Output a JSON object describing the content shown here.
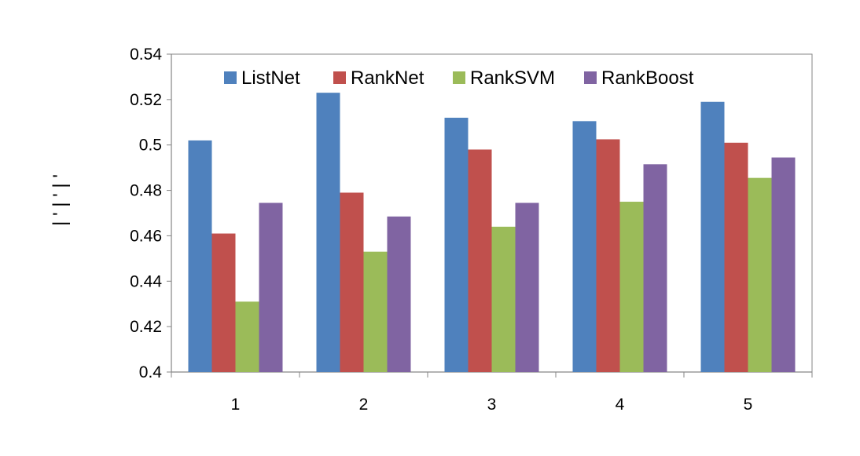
{
  "chart_data": {
    "type": "bar",
    "categories": [
      "1",
      "2",
      "3",
      "4",
      "5"
    ],
    "series": [
      {
        "name": "ListNet",
        "color": "#4F81BD",
        "values": [
          0.502,
          0.523,
          0.512,
          0.5105,
          0.519
        ]
      },
      {
        "name": "RankNet",
        "color": "#C0504D",
        "values": [
          0.461,
          0.479,
          0.498,
          0.5025,
          0.501
        ]
      },
      {
        "name": "RankSVM",
        "color": "#9BBB59",
        "values": [
          0.431,
          0.453,
          0.464,
          0.475,
          0.4855
        ]
      },
      {
        "name": "RankBoost",
        "color": "#8064A2",
        "values": [
          0.4745,
          0.4685,
          0.4745,
          0.4915,
          0.4945
        ]
      }
    ],
    "ylim": [
      0.4,
      0.54
    ],
    "yticks": [
      "0.4",
      "0.42",
      "0.44",
      "0.46",
      "0.48",
      "0.5",
      "0.52",
      "0.54"
    ],
    "ylabel": "| ' | ' | '",
    "grid": false,
    "legend_position": "top"
  }
}
